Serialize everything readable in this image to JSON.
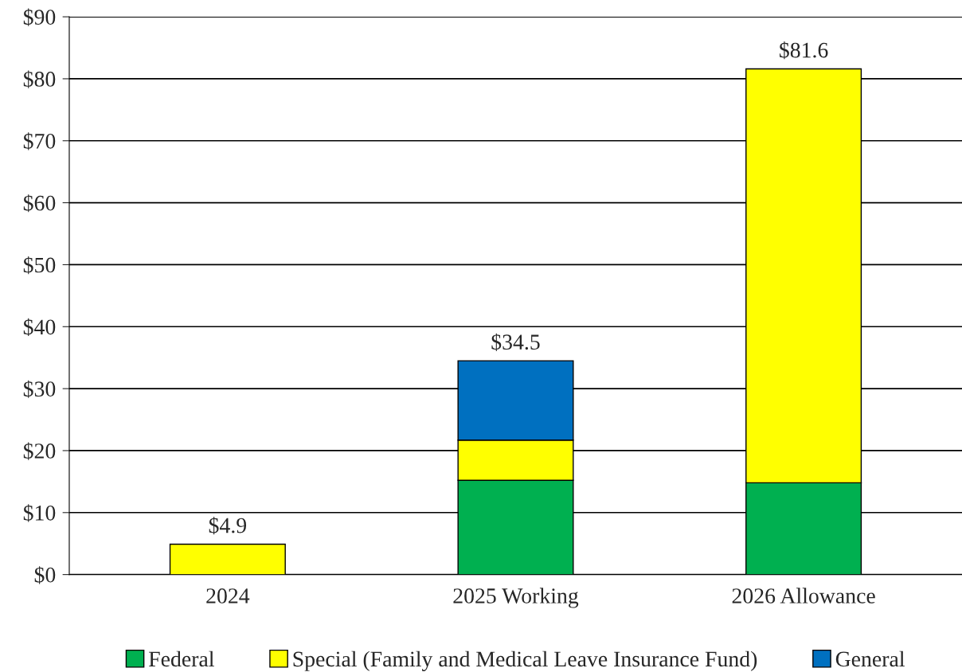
{
  "chart_data": {
    "type": "bar",
    "stacked": true,
    "categories": [
      "2024",
      "2025 Working",
      "2026 Allowance"
    ],
    "series": [
      {
        "name": "Federal",
        "color": "#00b050",
        "values": [
          null,
          15.2,
          14.8
        ]
      },
      {
        "name": "Special (Family and Medical Leave Insurance Fund)",
        "color": "#ffff00",
        "values": [
          4.9,
          6.5,
          66.8
        ]
      },
      {
        "name": "General",
        "color": "#0070c0",
        "values": [
          null,
          12.8,
          null
        ]
      }
    ],
    "totals": [
      "$4.9",
      "$34.5",
      "$81.6"
    ],
    "ylim": [
      0,
      90
    ],
    "yticks": [
      {
        "value": 0,
        "label": "$0"
      },
      {
        "value": 10,
        "label": "$10"
      },
      {
        "value": 20,
        "label": "$20"
      },
      {
        "value": 30,
        "label": "$30"
      },
      {
        "value": 40,
        "label": "$40"
      },
      {
        "value": 50,
        "label": "$50"
      },
      {
        "value": 60,
        "label": "$60"
      },
      {
        "value": 70,
        "label": "$70"
      },
      {
        "value": 80,
        "label": "$80"
      },
      {
        "value": 90,
        "label": "$90"
      }
    ],
    "grid": "y",
    "legend": "bottom"
  }
}
